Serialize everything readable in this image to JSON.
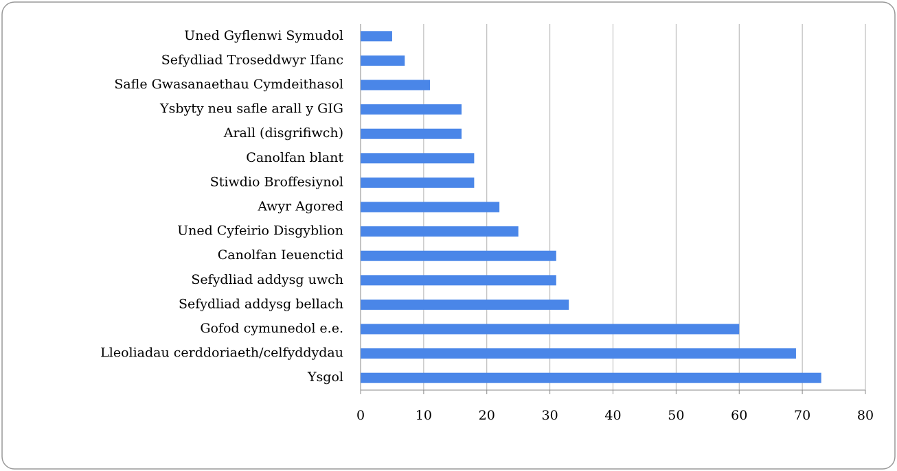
{
  "chart_data": {
    "type": "hbar",
    "categories": [
      "Uned Gyflenwi Symudol",
      "Sefydliad Troseddwyr Ifanc",
      "Safle Gwasanaethau Cymdeithasol",
      "Ysbyty neu safle arall y GIG",
      "Arall (disgrifiwch)",
      "Canolfan blant",
      "Stiwdio Broffesiynol",
      "Awyr Agored",
      "Uned Cyfeirio Disgyblion",
      "Canolfan Ieuenctid",
      "Sefydliad addysg uwch",
      "Sefydliad addysg bellach",
      "Gofod cymunedol e.e.",
      "Lleoliadau cerddoriaeth/celfyddydau",
      "Ysgol"
    ],
    "values": [
      5,
      7,
      11,
      16,
      16,
      18,
      18,
      22,
      25,
      31,
      31,
      33,
      60,
      69,
      73
    ],
    "color": "#4a86e8",
    "xlim": [
      0,
      80
    ],
    "xticks": [
      0,
      10,
      20,
      30,
      40,
      50,
      60,
      70,
      80
    ],
    "grid": true
  }
}
